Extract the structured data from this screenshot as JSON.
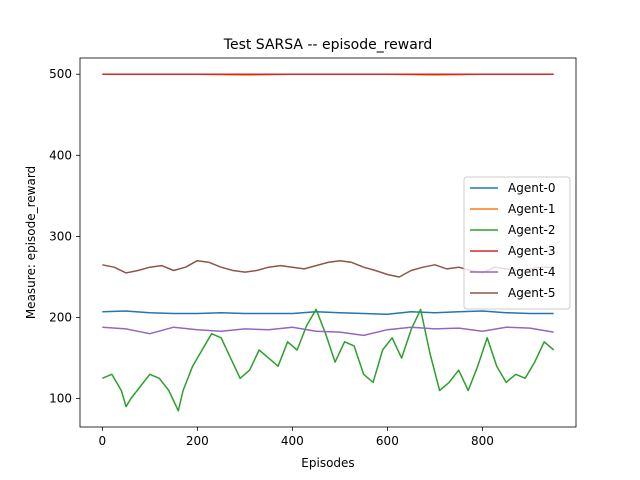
{
  "chart_data": {
    "type": "line",
    "title": "Test  SARSA -- episode_reward",
    "xlabel": "Episodes",
    "ylabel": "Measure: episode_reward",
    "xlim": [
      -47,
      997
    ],
    "ylim": [
      65,
      520
    ],
    "xticks": [
      0,
      200,
      400,
      600,
      800
    ],
    "yticks": [
      100,
      200,
      300,
      400,
      500
    ],
    "grid": false,
    "legend": "center-right",
    "series": [
      {
        "name": "Agent-0",
        "color": "#1f77b4",
        "x": [
          0,
          50,
          100,
          150,
          200,
          250,
          300,
          350,
          400,
          450,
          500,
          550,
          600,
          650,
          700,
          750,
          800,
          850,
          900,
          950
        ],
        "y": [
          207,
          208,
          206,
          205,
          205,
          206,
          205,
          205,
          205,
          207,
          206,
          205,
          204,
          207,
          206,
          207,
          208,
          206,
          205,
          205
        ]
      },
      {
        "name": "Agent-1",
        "color": "#ff7f0e",
        "x": [
          0,
          100,
          200,
          300,
          400,
          500,
          600,
          700,
          800,
          900,
          950
        ],
        "y": [
          500,
          500,
          500,
          499,
          500,
          500,
          500,
          499,
          500,
          500,
          500
        ]
      },
      {
        "name": "Agent-2",
        "color": "#2ca02c",
        "x": [
          0,
          20,
          40,
          50,
          60,
          80,
          100,
          120,
          140,
          160,
          170,
          190,
          210,
          230,
          250,
          270,
          290,
          310,
          330,
          350,
          370,
          390,
          410,
          430,
          450,
          470,
          490,
          510,
          530,
          550,
          570,
          590,
          610,
          630,
          650,
          670,
          690,
          710,
          730,
          750,
          770,
          790,
          810,
          830,
          850,
          870,
          890,
          910,
          930,
          950
        ],
        "y": [
          125,
          130,
          110,
          90,
          100,
          115,
          130,
          125,
          110,
          85,
          110,
          140,
          160,
          180,
          175,
          150,
          125,
          135,
          160,
          150,
          140,
          170,
          160,
          190,
          210,
          180,
          145,
          170,
          165,
          130,
          120,
          160,
          175,
          150,
          185,
          210,
          155,
          110,
          120,
          135,
          110,
          140,
          175,
          140,
          120,
          130,
          125,
          145,
          170,
          160
        ]
      },
      {
        "name": "Agent-3",
        "color": "#d62728",
        "x": [
          0,
          100,
          200,
          300,
          400,
          500,
          600,
          700,
          800,
          900,
          950
        ],
        "y": [
          500,
          500,
          500,
          500,
          500,
          500,
          500,
          500,
          500,
          500,
          500
        ]
      },
      {
        "name": "Agent-4",
        "color": "#9467bd",
        "x": [
          0,
          50,
          100,
          150,
          200,
          250,
          300,
          350,
          400,
          450,
          500,
          550,
          600,
          650,
          700,
          750,
          800,
          850,
          900,
          950
        ],
        "y": [
          188,
          186,
          180,
          188,
          185,
          183,
          186,
          185,
          188,
          183,
          182,
          178,
          185,
          188,
          186,
          187,
          183,
          188,
          187,
          182
        ]
      },
      {
        "name": "Agent-5",
        "color": "#8c564b",
        "x": [
          0,
          25,
          50,
          75,
          100,
          125,
          150,
          175,
          200,
          225,
          250,
          275,
          300,
          325,
          350,
          375,
          400,
          425,
          450,
          475,
          500,
          525,
          550,
          575,
          600,
          625,
          650,
          675,
          700,
          725,
          750,
          775,
          800,
          825,
          850,
          875,
          900,
          925,
          950
        ],
        "y": [
          265,
          262,
          255,
          258,
          262,
          264,
          258,
          262,
          270,
          268,
          262,
          258,
          256,
          258,
          262,
          264,
          262,
          260,
          264,
          268,
          270,
          268,
          262,
          258,
          253,
          250,
          258,
          262,
          265,
          260,
          262,
          258,
          255,
          262,
          260,
          258,
          260,
          262,
          262
        ]
      }
    ]
  }
}
